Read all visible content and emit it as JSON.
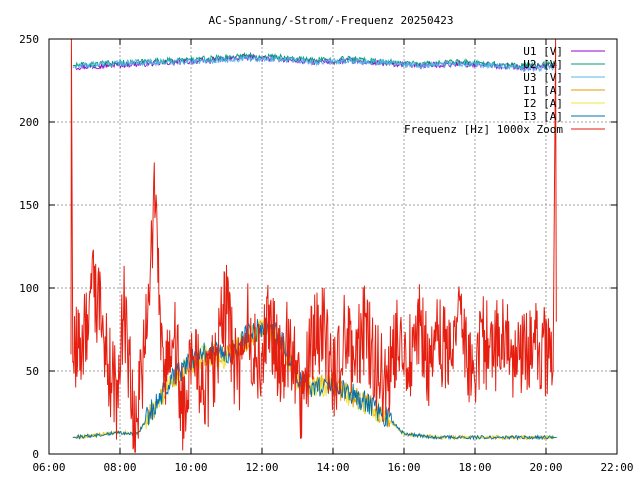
{
  "chart_data": {
    "type": "line",
    "title": "AC-Spannung/-Strom/-Frequenz 20250423",
    "xlabel": "",
    "ylabel": "",
    "xlim": [
      6,
      22
    ],
    "ylim": [
      0,
      250
    ],
    "x_ticks": [
      "06:00",
      "08:00",
      "10:00",
      "12:00",
      "14:00",
      "16:00",
      "18:00",
      "20:00",
      "22:00"
    ],
    "y_ticks": [
      "0",
      "50",
      "100",
      "150",
      "200",
      "250"
    ],
    "grid": true,
    "legend_position": "top-right",
    "series": [
      {
        "name": "U1 [V]",
        "color": "#9400d3",
        "x": [
          6.67,
          7.5,
          8.5,
          9.5,
          10.5,
          11.5,
          12.5,
          13.5,
          14.5,
          15.5,
          16.5,
          17.5,
          18.5,
          19.5,
          20.3
        ],
        "values": [
          233,
          234,
          235,
          236,
          237,
          239,
          238,
          236,
          237,
          235,
          234,
          235,
          234,
          233,
          234
        ]
      },
      {
        "name": "U2 [V]",
        "color": "#009e73",
        "x": [
          6.67,
          7.5,
          8.5,
          9.5,
          10.5,
          11.5,
          12.5,
          13.5,
          14.5,
          15.5,
          16.5,
          17.5,
          18.5,
          19.5,
          20.3
        ],
        "values": [
          234,
          235,
          236,
          237,
          238,
          240,
          239,
          237,
          238,
          236,
          235,
          236,
          235,
          234,
          235
        ]
      },
      {
        "name": "U3 [V]",
        "color": "#56b4e9",
        "x": [
          6.67,
          7.5,
          8.5,
          9.5,
          10.5,
          11.5,
          12.5,
          13.5,
          14.5,
          15.5,
          16.5,
          17.5,
          18.5,
          19.5,
          20.3
        ],
        "values": [
          233,
          235,
          236,
          236,
          237,
          238,
          238,
          236,
          237,
          236,
          234,
          235,
          234,
          232,
          233
        ]
      },
      {
        "name": "I1 [A]",
        "color": "#e69f00",
        "x": [
          6.67,
          7.2,
          8.0,
          8.5,
          9.0,
          9.5,
          10.0,
          10.5,
          11.0,
          11.5,
          12.0,
          12.5,
          13.0,
          13.5,
          14.0,
          14.5,
          15.0,
          15.5,
          16.0,
          17.0,
          18.0,
          19.0,
          20.0,
          20.3
        ],
        "values": [
          10,
          11,
          13,
          12,
          30,
          45,
          55,
          60,
          58,
          68,
          75,
          70,
          45,
          40,
          42,
          35,
          30,
          22,
          12,
          10,
          10,
          10,
          10,
          10
        ]
      },
      {
        "name": "I2 [A]",
        "color": "#f0e442",
        "x": [
          6.67,
          7.2,
          8.0,
          8.5,
          9.0,
          9.5,
          10.0,
          10.5,
          11.0,
          11.5,
          12.0,
          12.5,
          13.0,
          13.5,
          14.0,
          14.5,
          15.0,
          15.5,
          16.0,
          17.0,
          18.0,
          19.0,
          20.0,
          20.3
        ],
        "values": [
          10,
          11,
          13,
          12,
          30,
          45,
          55,
          60,
          58,
          68,
          75,
          70,
          45,
          40,
          42,
          35,
          30,
          22,
          12,
          10,
          10,
          10,
          10,
          10
        ]
      },
      {
        "name": "I3 [A]",
        "color": "#0072b2",
        "x": [
          6.67,
          7.2,
          8.0,
          8.5,
          9.0,
          9.5,
          10.0,
          10.5,
          11.0,
          11.5,
          12.0,
          12.5,
          13.0,
          13.5,
          14.0,
          14.5,
          15.0,
          15.5,
          16.0,
          17.0,
          18.0,
          19.0,
          20.0,
          20.3
        ],
        "values": [
          10,
          11,
          13,
          12,
          30,
          46,
          56,
          62,
          58,
          70,
          76,
          72,
          46,
          40,
          42,
          36,
          31,
          23,
          12,
          10,
          10,
          10,
          10,
          10
        ]
      },
      {
        "name": "Frequenz [Hz] 1000x Zoom",
        "color": "#e51e10",
        "x": [
          6.62,
          6.63,
          6.67,
          7.0,
          7.3,
          7.6,
          7.9,
          8.1,
          8.4,
          8.7,
          9.0,
          9.2,
          9.5,
          9.8,
          10.1,
          10.4,
          10.7,
          11.0,
          11.3,
          11.6,
          11.9,
          12.2,
          12.5,
          12.8,
          13.1,
          13.4,
          13.7,
          14.0,
          14.3,
          14.6,
          14.9,
          15.2,
          15.5,
          15.8,
          16.1,
          16.4,
          16.7,
          17.0,
          17.3,
          17.6,
          17.9,
          18.2,
          18.5,
          18.8,
          19.1,
          19.4,
          19.7,
          20.0,
          20.2,
          20.27,
          20.29,
          20.3
        ],
        "values": [
          60,
          250,
          55,
          75,
          100,
          60,
          35,
          90,
          20,
          60,
          160,
          40,
          80,
          20,
          70,
          30,
          60,
          90,
          40,
          75,
          50,
          80,
          55,
          70,
          35,
          65,
          80,
          45,
          70,
          60,
          75,
          55,
          40,
          65,
          50,
          80,
          55,
          70,
          60,
          85,
          45,
          70,
          60,
          75,
          55,
          65,
          70,
          60,
          50,
          250,
          80,
          80
        ]
      }
    ]
  }
}
